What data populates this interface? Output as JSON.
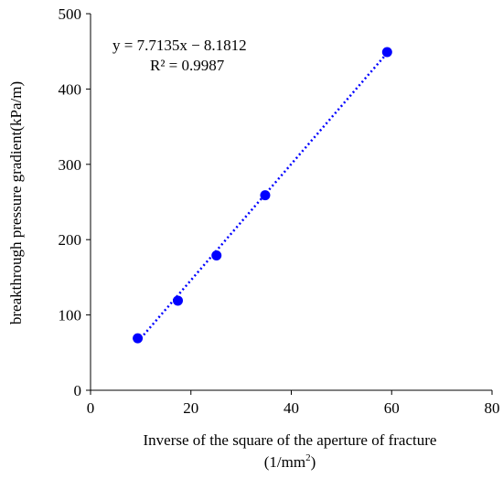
{
  "chart_data": {
    "type": "scatter",
    "xlabel_line1": "Inverse of the square of the aperture of fracture",
    "xlabel_line2_prefix": "(1/mm",
    "xlabel_line2_sup": "2",
    "xlabel_line2_suffix": ")",
    "ylabel": "breakthrough pressure gradient(kPa/m)",
    "xlim": [
      0,
      80
    ],
    "ylim": [
      0,
      500
    ],
    "xticks": [
      0,
      20,
      40,
      60,
      80
    ],
    "yticks": [
      0,
      100,
      200,
      300,
      400,
      500
    ],
    "grid": false,
    "series": [
      {
        "x": [
          9.4,
          17.4,
          25.1,
          34.8,
          59.1
        ],
        "y": [
          69,
          119,
          179,
          259,
          449
        ],
        "color": "#0000ff"
      }
    ],
    "trendline": {
      "type": "linear",
      "slope": 7.7135,
      "intercept": -8.1812,
      "x_range": [
        9.4,
        59.1
      ],
      "style": "dotted",
      "color": "#0000ff"
    },
    "annotations": {
      "equation": "y = 7.7135x − 8.1812",
      "r2": "R² = 0.9987"
    }
  }
}
